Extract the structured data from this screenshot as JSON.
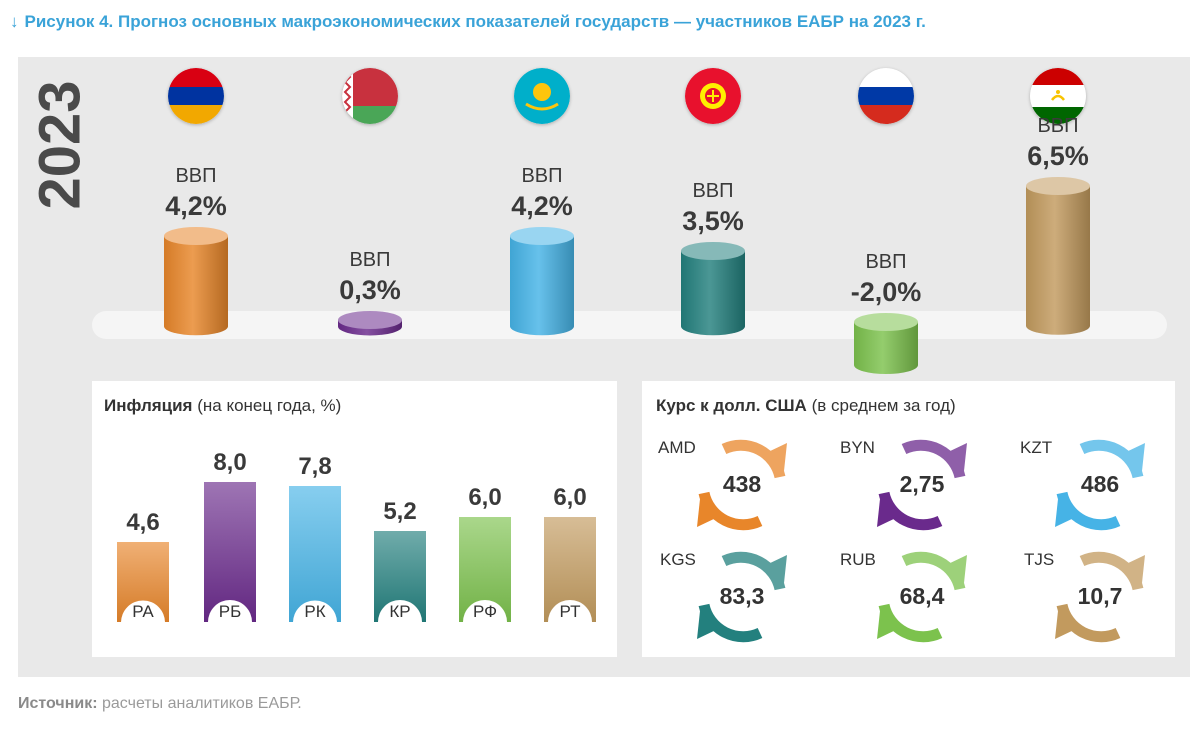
{
  "figure": {
    "arrow_glyph": "↓",
    "title": "Рисунок 4. Прогноз основных макроэкономических показателей государств — участников ЕАБР на 2023 г.",
    "year": "2023",
    "source_label": "Источник:",
    "source_text": "расчеты аналитиков ЕАБР."
  },
  "chart_data": [
    {
      "type": "bar",
      "categories": [
        "Армения",
        "Беларусь",
        "Казахстан",
        "Кыргызстан",
        "Россия",
        "Таджикистан"
      ],
      "label": "ВВП",
      "values": [
        4.2,
        0.3,
        4.2,
        3.5,
        -2.0,
        6.5
      ],
      "value_labels": [
        "4,2%",
        "0,3%",
        "4,2%",
        "3,5%",
        "-2,0%",
        "6,5%"
      ],
      "colors": [
        "#e8862a",
        "#6a2a8c",
        "#46b3e6",
        "#23807e",
        "#7cc24d",
        "#c29a5e"
      ]
    },
    {
      "type": "bar",
      "title_bold": "Инфляция",
      "title_rest": "(на конец года, %)",
      "categories": [
        "РА",
        "РБ",
        "РК",
        "КР",
        "РФ",
        "РТ"
      ],
      "values": [
        4.6,
        8.0,
        7.8,
        5.2,
        6.0,
        6.0
      ],
      "value_labels": [
        "4,6",
        "8,0",
        "7,8",
        "5,2",
        "6,0",
        "6,0"
      ],
      "colors": [
        "#e8862a",
        "#6a2a8c",
        "#46b3e6",
        "#23807e",
        "#7cc24d",
        "#c29a5e"
      ]
    },
    {
      "type": "table",
      "title_bold": "Курс к долл. США",
      "title_rest": "(в среднем за год)",
      "items": [
        {
          "code": "AMD",
          "value": "438",
          "color": "#e8862a"
        },
        {
          "code": "BYN",
          "value": "2,75",
          "color": "#6a2a8c"
        },
        {
          "code": "KZT",
          "value": "486",
          "color": "#46b3e6"
        },
        {
          "code": "KGS",
          "value": "83,3",
          "color": "#23807e"
        },
        {
          "code": "RUB",
          "value": "68,4",
          "color": "#7cc24d"
        },
        {
          "code": "TJS",
          "value": "10,7",
          "color": "#c29a5e"
        }
      ]
    }
  ],
  "flags": [
    "armenia-flag-icon",
    "belarus-flag-icon",
    "kazakhstan-flag-icon",
    "kyrgyzstan-flag-icon",
    "russia-flag-icon",
    "tajikistan-flag-icon"
  ]
}
